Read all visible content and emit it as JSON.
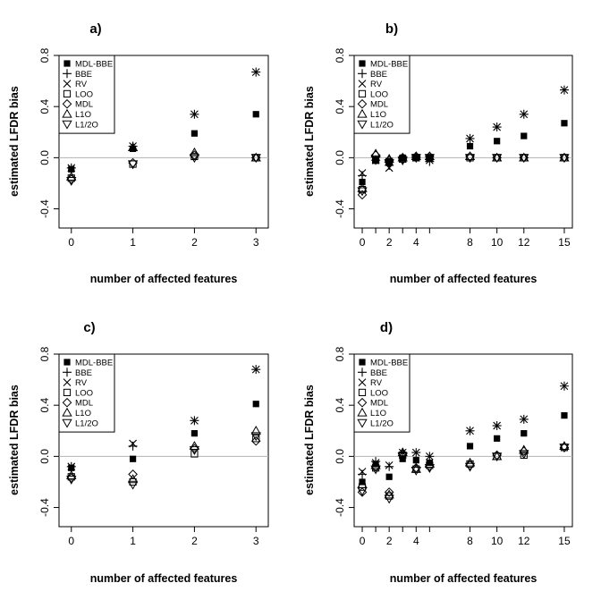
{
  "figure": {
    "legend_entries": [
      {
        "name": "MDL-BBE",
        "symbol": "filled-square"
      },
      {
        "name": "BBE",
        "symbol": "plus"
      },
      {
        "name": "RV",
        "symbol": "cross"
      },
      {
        "name": "LOO",
        "symbol": "open-square"
      },
      {
        "name": "MDL",
        "symbol": "diamond"
      },
      {
        "name": "L1O",
        "symbol": "triangle-up"
      },
      {
        "name": "L1/2O",
        "symbol": "triangle-down"
      }
    ],
    "colors": {
      "marker": "#000000",
      "reference_line": "#b3b3b3",
      "background": "#ffffff"
    }
  },
  "chart_data": [
    {
      "panel": "a)",
      "type": "scatter",
      "xlabel": "number of affected features",
      "ylabel": "estimated LFDR bias",
      "xlim": [
        -0.2,
        3.2
      ],
      "ylim": [
        -0.55,
        0.8
      ],
      "xticks": [
        0,
        1,
        2,
        3
      ],
      "yticks": [
        -0.4,
        0.0,
        0.4,
        0.8
      ],
      "ytick_labels": [
        "-0.4",
        "0.0",
        "0.4",
        "0.8"
      ],
      "reference_line_y": 0,
      "legend_position": "top-left",
      "x": [
        0,
        1,
        2,
        3
      ],
      "series": [
        {
          "name": "MDL-BBE",
          "values": [
            -0.09,
            0.07,
            0.19,
            0.34
          ]
        },
        {
          "name": "BBE",
          "values": [
            -0.08,
            0.09,
            0.34,
            0.67
          ]
        },
        {
          "name": "RV",
          "values": [
            -0.08,
            0.09,
            0.34,
            0.67
          ]
        },
        {
          "name": "LOO",
          "values": [
            -0.16,
            -0.05,
            0.01,
            0.0
          ]
        },
        {
          "name": "MDL",
          "values": [
            -0.17,
            -0.04,
            0.02,
            0.0
          ]
        },
        {
          "name": "L1O",
          "values": [
            -0.15,
            0.08,
            0.04,
            0.0
          ]
        },
        {
          "name": "L1/2O",
          "values": [
            -0.18,
            -0.05,
            0.0,
            0.0
          ]
        }
      ]
    },
    {
      "panel": "b)",
      "type": "scatter",
      "xlabel": "number of affected features",
      "ylabel": "estimated LFDR bias",
      "xlim": [
        -0.6,
        15.6
      ],
      "ylim": [
        -0.55,
        0.8
      ],
      "xticks": [
        0,
        1,
        2,
        3,
        4,
        5,
        8,
        10,
        12,
        15
      ],
      "xtick_labels": [
        "0",
        "",
        "2",
        "",
        "4",
        "",
        "8",
        "10",
        "12",
        "15"
      ],
      "yticks": [
        -0.4,
        0.0,
        0.4,
        0.8
      ],
      "ytick_labels": [
        "-0.4",
        "0.0",
        "0.4",
        "0.8"
      ],
      "reference_line_y": 0,
      "legend_position": "top-left",
      "x": [
        0,
        1,
        2,
        3,
        4,
        5,
        8,
        10,
        12,
        15
      ],
      "series": [
        {
          "name": "MDL-BBE",
          "values": [
            -0.19,
            -0.02,
            -0.03,
            0.0,
            0.0,
            0.0,
            0.09,
            0.13,
            0.17,
            0.27
          ]
        },
        {
          "name": "BBE",
          "values": [
            -0.14,
            -0.02,
            -0.06,
            -0.01,
            0.0,
            -0.03,
            0.15,
            0.24,
            0.34,
            0.53
          ]
        },
        {
          "name": "RV",
          "values": [
            -0.12,
            -0.02,
            -0.08,
            -0.01,
            0.0,
            -0.02,
            0.15,
            0.24,
            0.34,
            0.53
          ]
        },
        {
          "name": "LOO",
          "values": [
            -0.25,
            -0.02,
            -0.03,
            -0.01,
            0.0,
            0.0,
            0.0,
            0.0,
            0.0,
            0.0
          ]
        },
        {
          "name": "MDL",
          "values": [
            -0.29,
            0.02,
            -0.02,
            0.0,
            0.01,
            0.01,
            0.01,
            0.0,
            0.0,
            0.0
          ]
        },
        {
          "name": "L1O",
          "values": [
            -0.24,
            0.03,
            -0.01,
            0.0,
            0.01,
            0.01,
            0.01,
            0.0,
            0.0,
            0.0
          ]
        },
        {
          "name": "L1/2O",
          "values": [
            -0.26,
            -0.01,
            -0.04,
            -0.02,
            0.0,
            0.0,
            0.0,
            0.0,
            0.0,
            0.0
          ]
        }
      ]
    },
    {
      "panel": "c)",
      "type": "scatter",
      "xlabel": "number of affected features",
      "ylabel": "estimated LFDR bias",
      "xlim": [
        -0.2,
        3.2
      ],
      "ylim": [
        -0.55,
        0.8
      ],
      "xticks": [
        0,
        1,
        2,
        3
      ],
      "yticks": [
        -0.4,
        0.0,
        0.4,
        0.8
      ],
      "ytick_labels": [
        "-0.4",
        "0.0",
        "0.4",
        "0.8"
      ],
      "reference_line_y": 0,
      "legend_position": "top-left",
      "x": [
        0,
        1,
        2,
        3
      ],
      "series": [
        {
          "name": "MDL-BBE",
          "values": [
            -0.09,
            -0.02,
            0.18,
            0.41
          ]
        },
        {
          "name": "BBE",
          "values": [
            -0.08,
            0.08,
            0.28,
            0.68
          ]
        },
        {
          "name": "RV",
          "values": [
            -0.08,
            0.1,
            0.28,
            0.68
          ]
        },
        {
          "name": "LOO",
          "values": [
            -0.16,
            -0.2,
            0.02,
            0.14
          ]
        },
        {
          "name": "MDL",
          "values": [
            -0.17,
            -0.14,
            0.06,
            0.12
          ]
        },
        {
          "name": "L1O",
          "values": [
            -0.15,
            -0.18,
            0.08,
            0.2
          ]
        },
        {
          "name": "L1/2O",
          "values": [
            -0.18,
            -0.22,
            0.05,
            0.16
          ]
        }
      ]
    },
    {
      "panel": "d)",
      "type": "scatter",
      "xlabel": "number of affected features",
      "ylabel": "estimated LFDR bias",
      "xlim": [
        -0.6,
        15.6
      ],
      "ylim": [
        -0.55,
        0.8
      ],
      "xticks": [
        0,
        1,
        2,
        3,
        4,
        5,
        8,
        10,
        12,
        15
      ],
      "xtick_labels": [
        "0",
        "",
        "2",
        "",
        "4",
        "",
        "8",
        "10",
        "12",
        "15"
      ],
      "yticks": [
        -0.4,
        0.0,
        0.4,
        0.8
      ],
      "ytick_labels": [
        "-0.4",
        "0.0",
        "0.4",
        "0.8"
      ],
      "reference_line_y": 0,
      "legend_position": "top-left",
      "x": [
        0,
        1,
        2,
        3,
        4,
        5,
        8,
        10,
        12,
        15
      ],
      "series": [
        {
          "name": "MDL-BBE",
          "values": [
            -0.2,
            -0.06,
            -0.16,
            -0.02,
            -0.03,
            -0.05,
            0.08,
            0.14,
            0.18,
            0.32
          ]
        },
        {
          "name": "BBE",
          "values": [
            -0.14,
            -0.04,
            -0.08,
            0.03,
            0.03,
            0.0,
            0.2,
            0.24,
            0.29,
            0.55
          ]
        },
        {
          "name": "RV",
          "values": [
            -0.12,
            -0.05,
            -0.07,
            0.03,
            0.03,
            0.0,
            0.2,
            0.24,
            0.29,
            0.55
          ]
        },
        {
          "name": "LOO",
          "values": [
            -0.24,
            -0.09,
            -0.31,
            0.01,
            -0.1,
            -0.07,
            -0.06,
            0.0,
            0.01,
            0.07
          ]
        },
        {
          "name": "MDL",
          "values": [
            -0.28,
            -0.08,
            -0.28,
            0.02,
            -0.09,
            -0.08,
            -0.07,
            0.01,
            0.04,
            0.07
          ]
        },
        {
          "name": "L1O",
          "values": [
            -0.22,
            -0.07,
            -0.3,
            0.03,
            -0.1,
            -0.06,
            -0.05,
            0.0,
            0.05,
            0.08
          ]
        },
        {
          "name": "L1/2O",
          "values": [
            -0.27,
            -0.1,
            -0.33,
            0.0,
            -0.11,
            -0.09,
            -0.08,
            0.0,
            0.02,
            0.07
          ]
        }
      ]
    }
  ]
}
